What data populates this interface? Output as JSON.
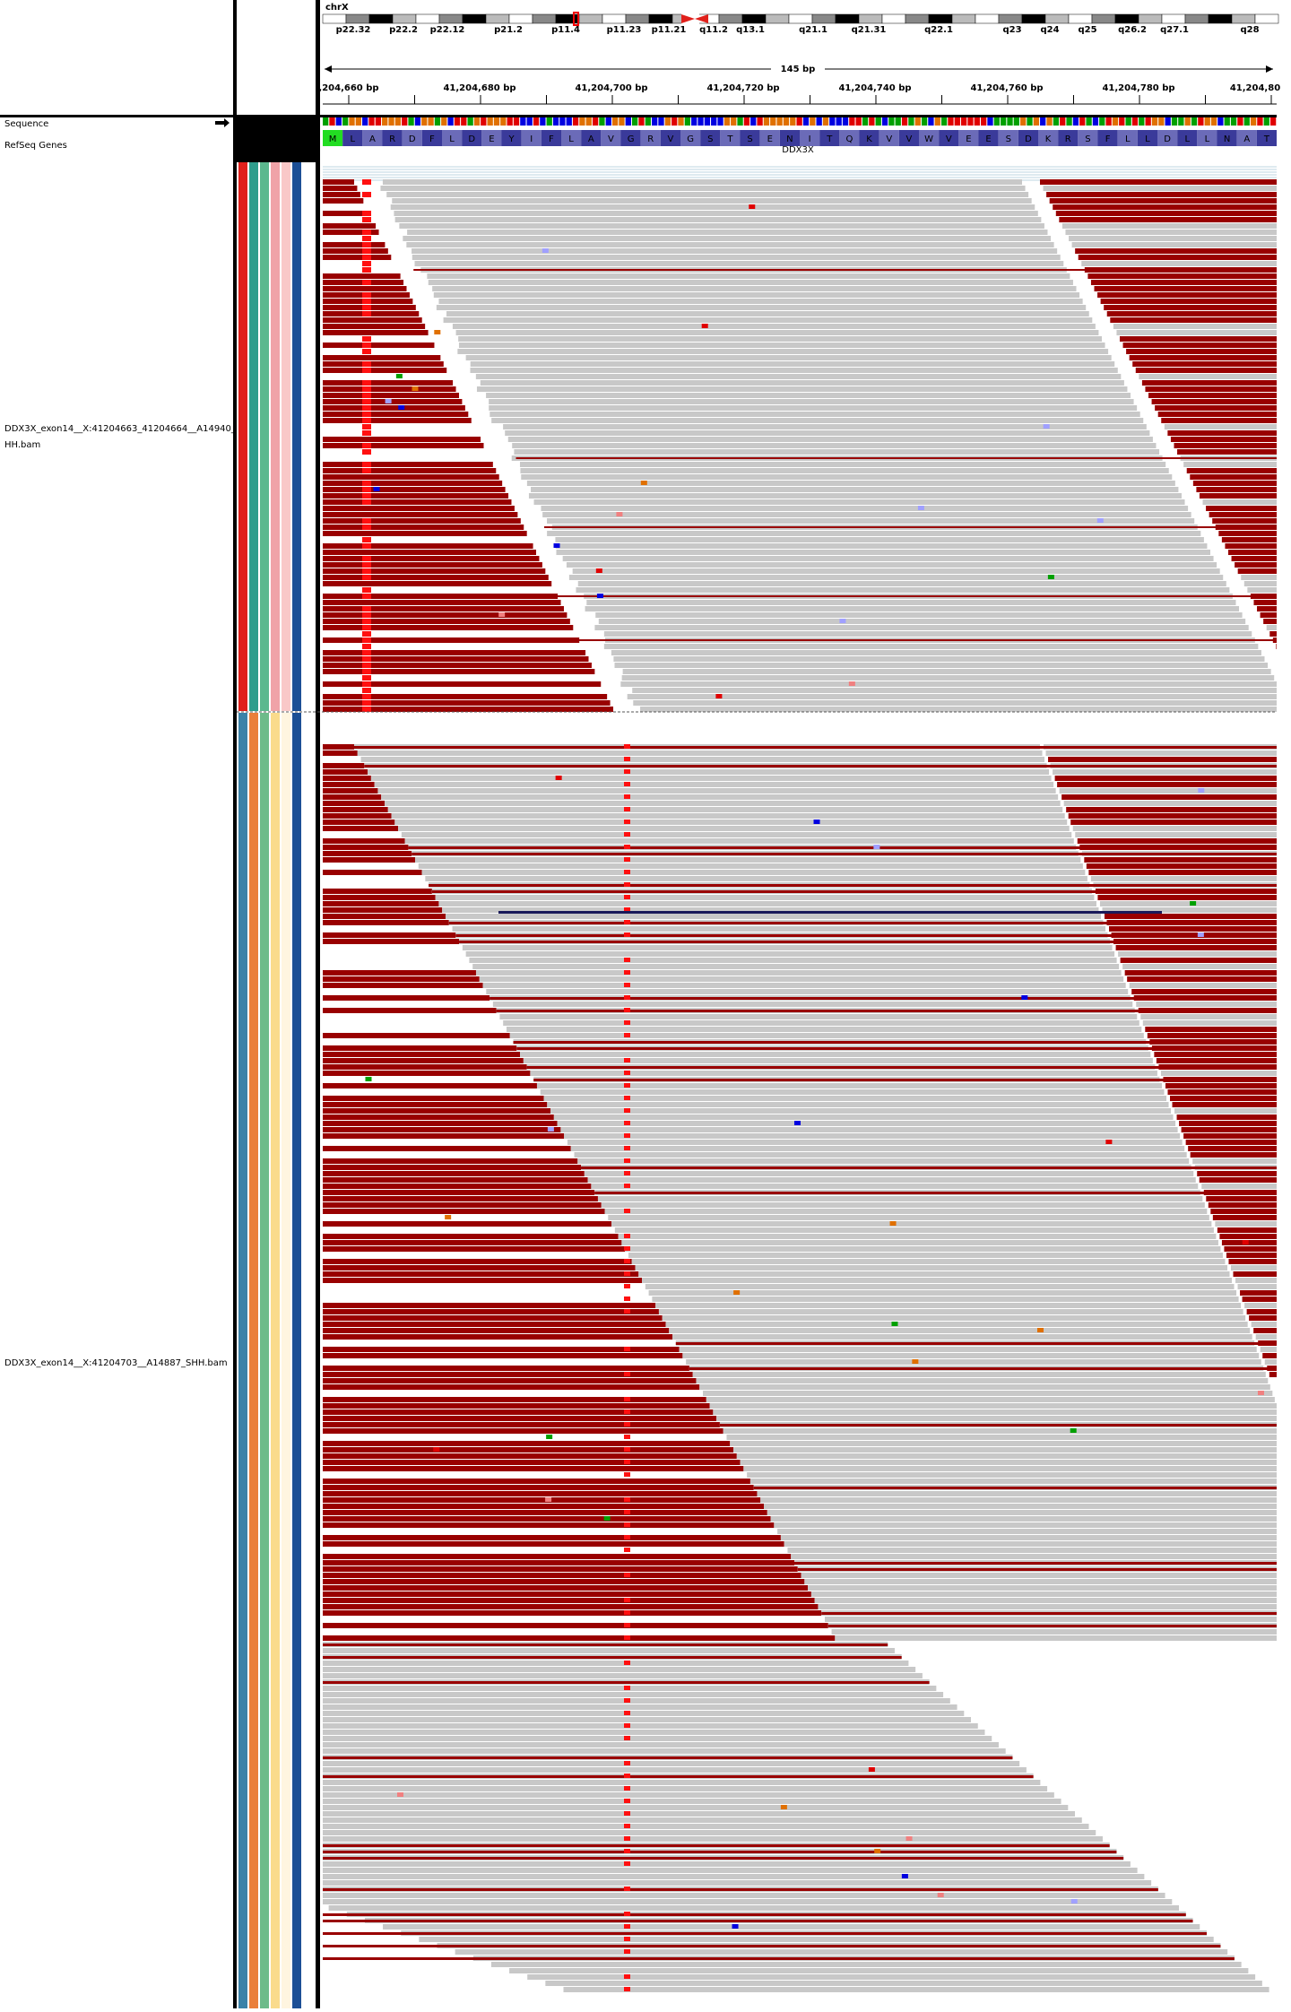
{
  "header": {
    "chromosome": "chrX",
    "cytobands": [
      "p22.32",
      "p22.2",
      "p22.12",
      "p21.2",
      "p11.4",
      "p11.23",
      "p11.21",
      "q11.2",
      "q13.1",
      "q21.1",
      "q21.31",
      "q22.1",
      "q23",
      "q24",
      "q25",
      "q26.2",
      "q27.1",
      "q28"
    ],
    "span": "145 bp",
    "ruler": [
      ",204,660 bp",
      "41,204,680 bp",
      "41,204,700 bp",
      "41,204,720 bp",
      "41,204,740 bp",
      "41,204,760 bp",
      "41,204,780 bp",
      "41,204,80"
    ]
  },
  "tracks": {
    "sequence": "Sequence",
    "genes": "RefSeq Genes",
    "amino_acids": [
      "M",
      "L",
      "A",
      "R",
      "D",
      "F",
      "L",
      "D",
      "E",
      "Y",
      "I",
      "F",
      "L",
      "A",
      "V",
      "G",
      "R",
      "V",
      "G",
      "S",
      "T",
      "S",
      "E",
      "N",
      "I",
      "T",
      "Q",
      "K",
      "V",
      "V",
      "W",
      "V",
      "E",
      "E",
      "S",
      "D",
      "K",
      "R",
      "S",
      "F",
      "L",
      "L",
      "D",
      "L",
      "L",
      "N",
      "A",
      "T"
    ],
    "gene": "DDX3X",
    "alignment_1": [
      "DDX3X_exon14__X:41204663_41204664__A14940_",
      "HH.bam"
    ],
    "alignment_2": "DDX3X_exon14__X:41204703__A14887_SHH.bam"
  }
}
